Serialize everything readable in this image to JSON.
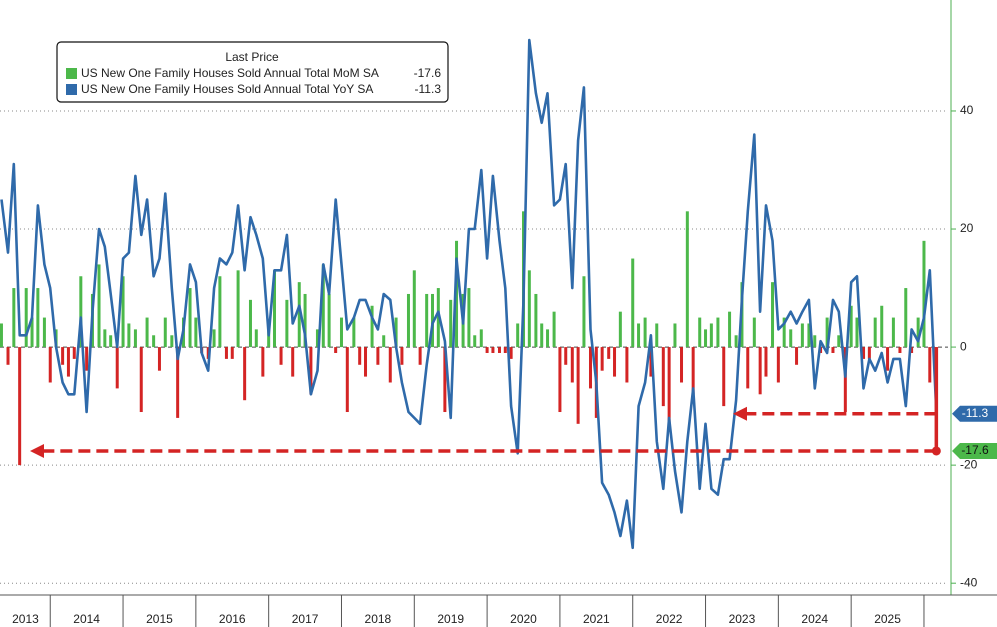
{
  "chart_data": {
    "type": "bar_line",
    "legend_title": "Last Price",
    "legend_position": "top-left",
    "x": [
      2013.33,
      2013.42,
      2013.5,
      2013.58,
      2013.67,
      2013.75,
      2013.83,
      2013.92,
      2014,
      2014.08,
      2014.17,
      2014.25,
      2014.33,
      2014.42,
      2014.5,
      2014.58,
      2014.67,
      2014.75,
      2014.83,
      2014.92,
      2015,
      2015.08,
      2015.17,
      2015.25,
      2015.33,
      2015.42,
      2015.5,
      2015.58,
      2015.67,
      2015.75,
      2015.83,
      2015.92,
      2016,
      2016.08,
      2016.17,
      2016.25,
      2016.33,
      2016.42,
      2016.5,
      2016.58,
      2016.67,
      2016.75,
      2016.83,
      2016.92,
      2017,
      2017.08,
      2017.17,
      2017.25,
      2017.33,
      2017.42,
      2017.5,
      2017.58,
      2017.67,
      2017.75,
      2017.83,
      2017.92,
      2018,
      2018.08,
      2018.17,
      2018.25,
      2018.33,
      2018.42,
      2018.5,
      2018.58,
      2018.67,
      2018.75,
      2018.83,
      2018.92,
      2019,
      2019.08,
      2019.17,
      2019.25,
      2019.33,
      2019.42,
      2019.5,
      2019.58,
      2019.67,
      2019.75,
      2019.83,
      2019.92,
      2020,
      2020.08,
      2020.17,
      2020.25,
      2020.33,
      2020.42,
      2020.5,
      2020.58,
      2020.67,
      2020.75,
      2020.83,
      2020.92,
      2021,
      2021.08,
      2021.17,
      2021.25,
      2021.33,
      2021.42,
      2021.5,
      2021.58,
      2021.67,
      2021.75,
      2021.83,
      2021.92,
      2022,
      2022.08,
      2022.17,
      2022.25,
      2022.33,
      2022.42,
      2022.5,
      2022.58,
      2022.67,
      2022.75,
      2022.83,
      2022.92,
      2023,
      2023.08,
      2023.17,
      2023.25,
      2023.33,
      2023.42,
      2023.5,
      2023.58,
      2023.67,
      2023.75,
      2023.83,
      2023.92,
      2024,
      2024.08,
      2024.17,
      2024.25,
      2024.33,
      2024.42,
      2024.5,
      2024.58,
      2024.67,
      2024.75,
      2024.83,
      2024.92,
      2025,
      2025.08,
      2025.17,
      2025.25,
      2025.33,
      2025.42,
      2025.5,
      2025.58,
      2025.67,
      2025.75,
      2025.83,
      2025.92,
      2026,
      2026.08,
      2026.17
    ],
    "series": [
      {
        "name": "US New One Family Houses Sold Annual Total MoM SA",
        "kind": "bar",
        "color": "#4cb84a",
        "negative_color": "#d42424",
        "values": [
          4,
          -3,
          10,
          -20,
          10,
          5,
          10,
          5,
          -6,
          3,
          -3,
          -5,
          -2,
          12,
          -4,
          9,
          14,
          3,
          2,
          -7,
          12,
          4,
          3,
          -11,
          5,
          2,
          -4,
          5,
          2,
          -12,
          5,
          10,
          5,
          -1,
          -2,
          3,
          12,
          -2,
          -2,
          13,
          -9,
          8,
          3,
          -5,
          4,
          13,
          -3,
          8,
          -5,
          11,
          9,
          -8,
          3,
          14,
          9,
          -1,
          5,
          -11,
          5,
          -3,
          -5,
          7,
          -3,
          2,
          -6,
          5,
          -3,
          9,
          13,
          -3,
          9,
          9,
          10,
          -11,
          8,
          18,
          9,
          10,
          2,
          3,
          -1,
          -1,
          -1,
          -1,
          -2,
          4,
          23,
          13,
          9,
          4,
          3,
          6,
          -11,
          -3,
          -6,
          -13,
          12,
          -7,
          -12,
          -4,
          -2,
          -5,
          6,
          -6,
          15,
          4,
          5,
          -5,
          4,
          -10,
          -13,
          4,
          -6,
          23,
          -8,
          5,
          3,
          4,
          5,
          -10,
          6,
          2,
          11,
          -7,
          5,
          -8,
          -5,
          11,
          -6,
          5,
          3,
          -3,
          4,
          4,
          2,
          -1,
          5,
          -1,
          2,
          -11,
          7,
          5,
          -2,
          -2,
          5,
          7,
          -4,
          5,
          -1,
          10,
          -1,
          5,
          18,
          -6,
          -17.6
        ]
      },
      {
        "name": "US New One Family Houses Sold Annual Total YoY SA",
        "kind": "line",
        "color": "#2f6aaa",
        "values": [
          25,
          16,
          31,
          2,
          2,
          5,
          24,
          14,
          10,
          0,
          -6,
          -8,
          -8,
          5,
          -11,
          6,
          20,
          17,
          9,
          0,
          15,
          16,
          29,
          19,
          25,
          12,
          15,
          26,
          10,
          -2,
          3,
          14,
          11,
          -1,
          -4,
          10,
          15,
          14,
          16,
          24,
          13,
          22,
          19,
          15,
          2,
          13,
          13,
          19,
          4,
          7,
          2,
          -8,
          -4,
          14,
          9,
          25,
          14,
          3,
          5,
          8,
          8,
          5,
          3,
          9,
          8,
          0,
          -6,
          -11,
          -12,
          -13,
          -3,
          4,
          6,
          1,
          -12,
          15,
          4,
          20,
          20,
          30,
          15,
          29,
          18,
          10,
          -10,
          -18,
          8,
          52,
          43,
          38,
          43,
          24,
          25,
          31,
          10,
          35,
          44,
          3,
          -6,
          -23,
          -25,
          -28,
          -32,
          -26,
          -34,
          -10,
          -6,
          2,
          -16,
          -24,
          -12,
          -21,
          -28,
          -16,
          -7,
          -24,
          -13,
          -24,
          -25,
          -19,
          -19,
          -9,
          8,
          23,
          36,
          6,
          24,
          18,
          3,
          4,
          6,
          4,
          6,
          8,
          -7,
          1,
          -1,
          8,
          6,
          -5,
          11,
          12,
          -7,
          -2,
          -4,
          -1,
          -6,
          -2,
          -2,
          -10,
          3,
          1,
          5,
          13,
          -11.3
        ]
      }
    ],
    "xlim": [
      2013.31,
      2026.33
    ],
    "xticks": [
      {
        "value": 2013.66,
        "label": "2013"
      },
      {
        "value": 2014.5,
        "label": "2014"
      },
      {
        "value": 2015.5,
        "label": "2015"
      },
      {
        "value": 2016.5,
        "label": "2016"
      },
      {
        "value": 2017.5,
        "label": "2017"
      },
      {
        "value": 2018.5,
        "label": "2018"
      },
      {
        "value": 2019.5,
        "label": "2019"
      },
      {
        "value": 2020.5,
        "label": "2020"
      },
      {
        "value": 2021.5,
        "label": "2021"
      },
      {
        "value": 2022.5,
        "label": "2022"
      },
      {
        "value": 2023.5,
        "label": "2023"
      },
      {
        "value": 2024.5,
        "label": "2024"
      },
      {
        "value": 2025.5,
        "label": "2025"
      }
    ],
    "ylim": [
      -42,
      58.8
    ],
    "yticks": [
      -40,
      -20,
      0,
      20,
      40
    ],
    "grid": true
  }
}
